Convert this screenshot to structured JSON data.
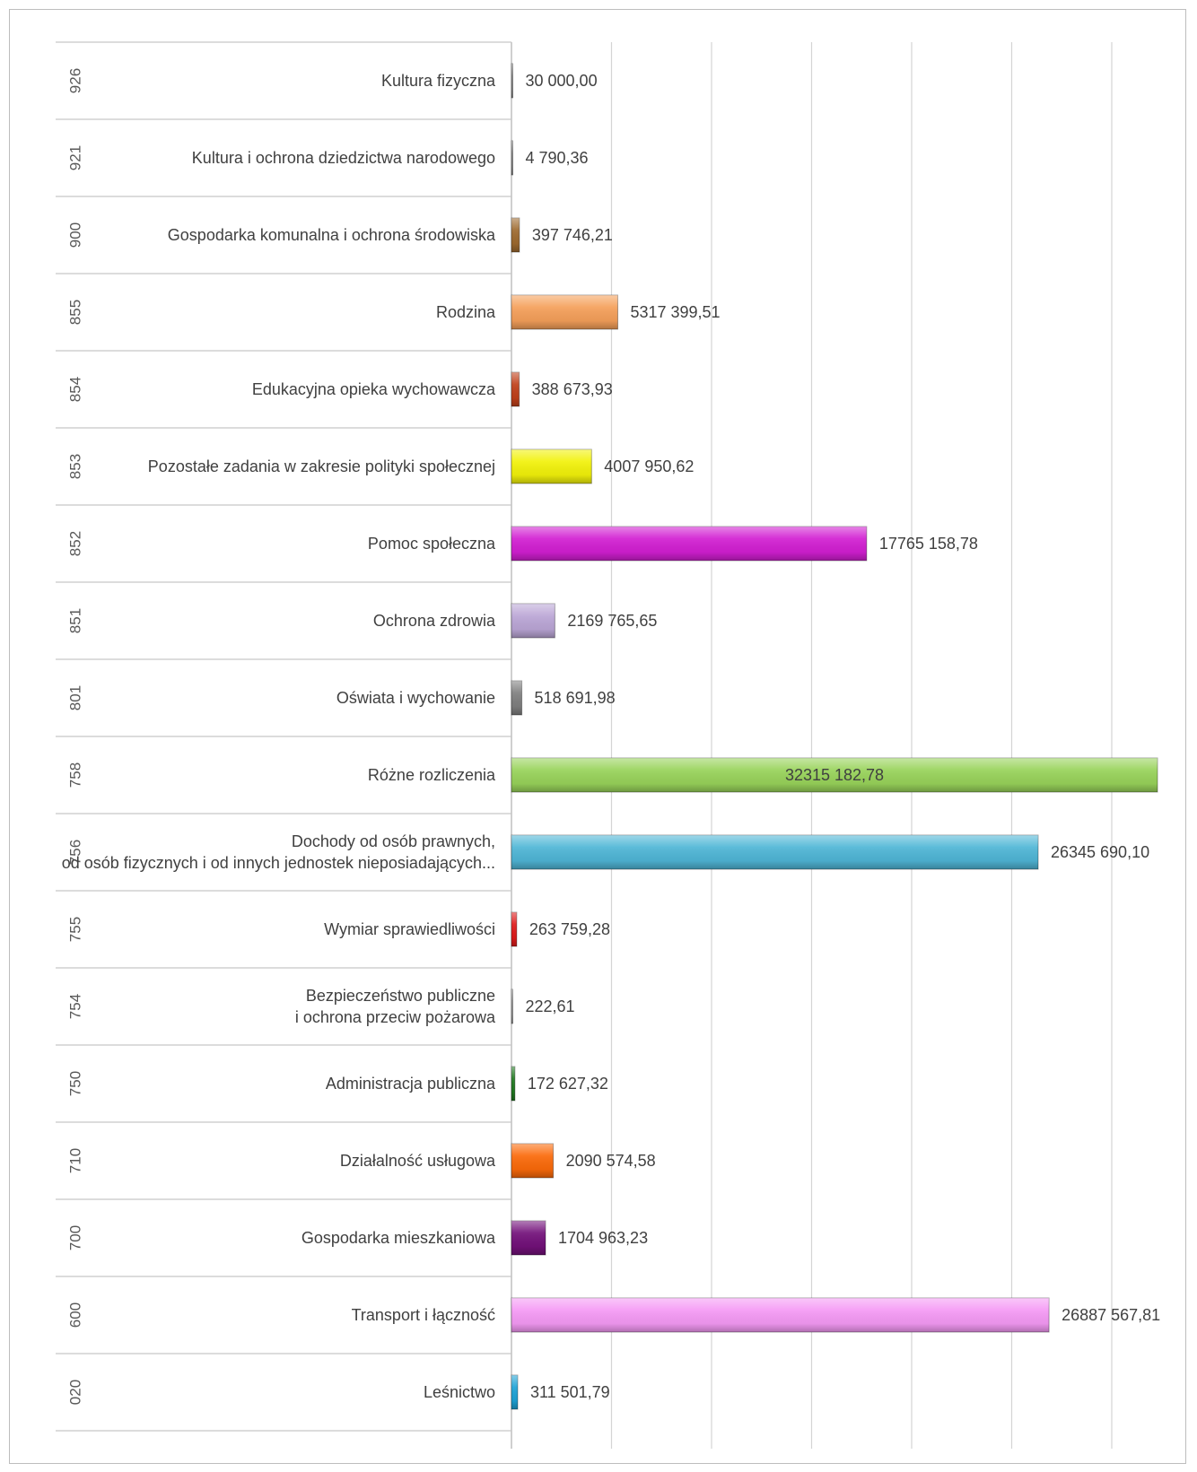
{
  "chart_data": {
    "type": "bar",
    "orientation": "horizontal",
    "grid": true,
    "legend": "none",
    "xlim": [
      0,
      32315182.78
    ],
    "categories": [
      {
        "code": "926",
        "name": [
          "Kultura fizyczna"
        ],
        "value": 30000.0,
        "label": "30 000,00",
        "color": "#8c8c8c"
      },
      {
        "code": "921",
        "name": [
          "Kultura i ochrona dziedzictwa narodowego"
        ],
        "value": 4790.36,
        "label": "4 790,36",
        "color": "#8c8c8c"
      },
      {
        "code": "900",
        "name": [
          "Gospodarka komunalna i ochrona środowiska"
        ],
        "value": 397746.21,
        "label": "397 746,21",
        "color": "#9e6a2f"
      },
      {
        "code": "855",
        "name": [
          "Rodzina"
        ],
        "value": 5317399.51,
        "label": "5317 399,51",
        "color": "#f5a05a"
      },
      {
        "code": "854",
        "name": [
          "Edukacyjna opieka wychowawcza"
        ],
        "value": 388673.93,
        "label": "388 673,93",
        "color": "#c0401a"
      },
      {
        "code": "853",
        "name": [
          "Pozostałe zadania w zakresie polityki społecznej"
        ],
        "value": 4007950.62,
        "label": "4007 950,62",
        "color": "#f2f20a"
      },
      {
        "code": "852",
        "name": [
          "Pomoc społeczna"
        ],
        "value": 17765158.78,
        "label": "17765 158,78",
        "color": "#d21fd2"
      },
      {
        "code": "851",
        "name": [
          "Ochrona zdrowia"
        ],
        "value": 2169765.65,
        "label": "2169 765,65",
        "color": "#bba6d6"
      },
      {
        "code": "801",
        "name": [
          "Oświata i wychowanie"
        ],
        "value": 518691.98,
        "label": "518 691,98",
        "color": "#7f7f7f"
      },
      {
        "code": "758",
        "name": [
          "Różne rozliczenia"
        ],
        "value": 32315182.78,
        "label": "32315 182,78",
        "color": "#98d35a",
        "label_inside": true
      },
      {
        "code": "756",
        "name": [
          "Dochody od osób prawnych,",
          "od osób fizycznych i od innych jednostek nieposiadających..."
        ],
        "value": 26345690.1,
        "label": "26345 690,10",
        "color": "#4fb6d6"
      },
      {
        "code": "755",
        "name": [
          "Wymiar sprawiedliwości"
        ],
        "value": 263759.28,
        "label": "263 759,28",
        "color": "#e01b1b"
      },
      {
        "code": "754",
        "name": [
          "Bezpieczeństwo publiczne",
          "i ochrona przeciw pożarowa"
        ],
        "value": 222.61,
        "label": "222,61",
        "color": "#a0a0a0"
      },
      {
        "code": "750",
        "name": [
          "Administracja publiczna"
        ],
        "value": 172627.32,
        "label": "172 627,32",
        "color": "#1f7a1f"
      },
      {
        "code": "710",
        "name": [
          "Działalność usługowa"
        ],
        "value": 2090574.58,
        "label": "2090 574,58",
        "color": "#fb6a0a"
      },
      {
        "code": "700",
        "name": [
          "Gospodarka mieszkaniowa"
        ],
        "value": 1704963.23,
        "label": "1704 963,23",
        "color": "#73117a"
      },
      {
        "code": "600",
        "name": [
          "Transport i łączność"
        ],
        "value": 26887567.81,
        "label": "26887 567,81",
        "color": "#f59af5"
      },
      {
        "code": "020",
        "name": [
          "Leśnictwo"
        ],
        "value": 311501.79,
        "label": "311 501,79",
        "color": "#1fa3d6"
      }
    ]
  }
}
